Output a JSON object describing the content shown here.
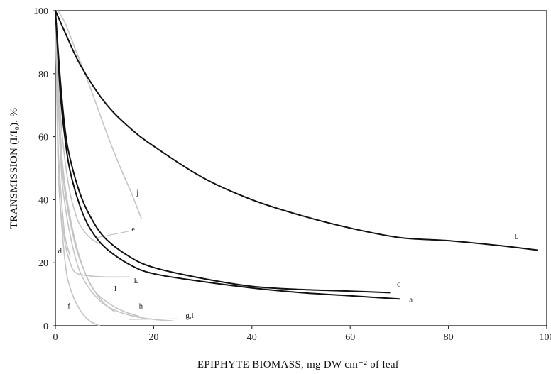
{
  "chart_data": {
    "type": "line",
    "title": "",
    "xlabel": "EPIPHYTE BIOMASS, mg DW cm⁻² of leaf",
    "ylabel": "TRANSMISSION (I/I₀), %",
    "xlim": [
      0,
      100
    ],
    "ylim": [
      0,
      100
    ],
    "x_ticks": [
      0,
      20,
      40,
      60,
      80,
      100
    ],
    "x_tick_labels": [
      "0",
      "20",
      "40",
      "60",
      "80",
      "100"
    ],
    "y_ticks": [
      0,
      20,
      40,
      60,
      80,
      100
    ],
    "y_tick_labels": [
      "0",
      "20",
      "40",
      "60",
      "80",
      "100"
    ],
    "grid": false,
    "legend": "none",
    "colors": {
      "dark": "#111111",
      "light": "#c4c4c4",
      "leader": "#bdbdbd"
    },
    "series": [
      {
        "name": "b",
        "color": "dark",
        "x": [
          0,
          2,
          5,
          10,
          15,
          20,
          30,
          40,
          50,
          60,
          70,
          80,
          90,
          98
        ],
        "y": [
          100,
          93,
          83,
          71,
          63,
          57,
          47,
          40,
          35,
          31,
          28,
          27,
          25.5,
          24
        ]
      },
      {
        "name": "c",
        "color": "dark",
        "x": [
          0,
          1,
          2,
          3,
          5,
          7,
          10,
          15,
          20,
          30,
          40,
          50,
          60,
          68
        ],
        "y": [
          100,
          78,
          62,
          53,
          42,
          35,
          28,
          22,
          18.5,
          15,
          12.5,
          11.5,
          11,
          10.5
        ]
      },
      {
        "name": "a",
        "color": "dark",
        "x": [
          0,
          1,
          2,
          3,
          5,
          7,
          10,
          15,
          20,
          30,
          40,
          50,
          60,
          70
        ],
        "y": [
          100,
          74,
          59,
          49,
          38,
          31,
          25,
          19.5,
          16.5,
          14,
          12,
          10.5,
          9.5,
          8.5
        ]
      },
      {
        "name": "j",
        "color": "light",
        "x": [
          0.5,
          2,
          4,
          7,
          10,
          13,
          15.5,
          17.5
        ],
        "y": [
          100,
          96,
          88,
          76,
          63,
          51,
          42,
          34
        ]
      },
      {
        "name": "e",
        "color": "light",
        "x": [
          0,
          1,
          2,
          3,
          4,
          5,
          7,
          9
        ],
        "y": [
          100,
          68,
          52,
          42,
          36,
          32,
          28,
          26
        ]
      },
      {
        "name": "d",
        "color": "light",
        "x": [
          0,
          0.5,
          1,
          1.5,
          2,
          3
        ],
        "y": [
          100,
          60,
          45,
          35,
          28,
          22
        ]
      },
      {
        "name": "k",
        "color": "light",
        "x": [
          0,
          0.5,
          1,
          2,
          3,
          4,
          6,
          10,
          15
        ],
        "y": [
          100,
          55,
          38,
          26,
          20,
          17,
          16,
          15.5,
          15.5
        ]
      },
      {
        "name": "l",
        "color": "light",
        "x": [
          0,
          1,
          2,
          4,
          6,
          8,
          10,
          12
        ],
        "y": [
          100,
          62,
          44,
          27,
          17,
          11,
          7,
          4.5
        ]
      },
      {
        "name": "h",
        "color": "light",
        "x": [
          0,
          1,
          2,
          4,
          6,
          8,
          11,
          14,
          17
        ],
        "y": [
          100,
          58,
          42,
          26,
          17,
          11,
          7,
          4.5,
          3
        ]
      },
      {
        "name": "g,i",
        "color": "light",
        "x": [
          0,
          1,
          2,
          4,
          6,
          9,
          12,
          16,
          20,
          24
        ],
        "y": [
          100,
          55,
          38,
          22,
          14,
          8,
          5,
          3,
          2,
          1.5
        ]
      },
      {
        "name": "f",
        "color": "light",
        "x": [
          0,
          0.5,
          1,
          2,
          3,
          5,
          7,
          9
        ],
        "y": [
          100,
          55,
          38,
          20,
          12,
          5,
          1.5,
          0
        ]
      }
    ],
    "annotations": [
      {
        "text": "j",
        "x": 16.5,
        "y": 41.5
      },
      {
        "text": "e",
        "x": 15.5,
        "y": 30
      },
      {
        "text": "d",
        "x": 0.5,
        "y": 23
      },
      {
        "text": "k",
        "x": 16,
        "y": 13.5
      },
      {
        "text": "l",
        "x": 12,
        "y": 11
      },
      {
        "text": "h",
        "x": 17,
        "y": 5.5
      },
      {
        "text": "g,i",
        "x": 26.5,
        "y": 2.5
      },
      {
        "text": "f",
        "x": 2.5,
        "y": 5.5
      },
      {
        "text": "c",
        "x": 69.5,
        "y": 12.5
      },
      {
        "text": "a",
        "x": 72,
        "y": 7.5
      },
      {
        "text": "b",
        "x": 93.5,
        "y": 27.5
      }
    ],
    "leaders": [
      {
        "x": [
          8.5,
          15
        ],
        "y": [
          28,
          30
        ]
      },
      {
        "x": [
          10,
          15
        ],
        "y": [
          15.5,
          15.5
        ]
      },
      {
        "x": [
          15,
          25
        ],
        "y": [
          2,
          2.2
        ]
      }
    ]
  }
}
